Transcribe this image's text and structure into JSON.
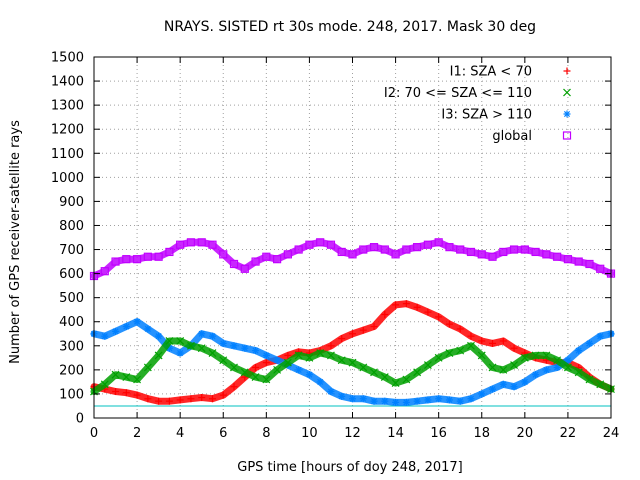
{
  "chart_data": {
    "type": "scatter",
    "title": "NRAYS. SISTED rt 30s mode. 248, 2017. Mask 30 deg",
    "xlabel": "GPS time [hours of doy 248, 2017]",
    "ylabel": "Number of GPS receiver-satellite rays",
    "xlim": [
      0,
      24
    ],
    "ylim": [
      0,
      1500
    ],
    "grid": true,
    "legend_position": "top-right",
    "x_ticks": [
      0,
      2,
      4,
      6,
      8,
      10,
      12,
      14,
      16,
      18,
      20,
      22,
      24
    ],
    "y_ticks": [
      0,
      100,
      200,
      300,
      400,
      500,
      600,
      700,
      800,
      900,
      1000,
      1100,
      1200,
      1300,
      1400,
      1500
    ],
    "threshold": {
      "value": 50,
      "color": "#00c0c0"
    },
    "series": [
      {
        "name": "I1: SZA < 70",
        "marker": "+",
        "color": "#ff0000",
        "x": [
          0,
          0.5,
          1,
          1.5,
          2,
          2.5,
          3,
          3.5,
          4,
          4.5,
          5,
          5.5,
          6,
          6.5,
          7,
          7.5,
          8,
          8.5,
          9,
          9.5,
          10,
          10.5,
          11,
          11.5,
          12,
          12.5,
          13,
          13.5,
          14,
          14.5,
          15,
          15.5,
          16,
          16.5,
          17,
          17.5,
          18,
          18.5,
          19,
          19.5,
          20,
          20.5,
          21,
          21.5,
          22,
          22.5,
          23,
          23.5,
          24
        ],
        "values": [
          130,
          120,
          110,
          105,
          95,
          80,
          70,
          70,
          75,
          80,
          85,
          80,
          95,
          130,
          170,
          210,
          230,
          240,
          260,
          275,
          270,
          280,
          300,
          330,
          350,
          365,
          380,
          430,
          470,
          475,
          460,
          440,
          420,
          390,
          370,
          340,
          320,
          310,
          320,
          290,
          270,
          250,
          240,
          230,
          230,
          210,
          170,
          140,
          120
        ]
      },
      {
        "name": "I2: 70 <= SZA <= 110",
        "marker": "x",
        "color": "#00a000",
        "x": [
          0,
          0.5,
          1,
          1.5,
          2,
          2.5,
          3,
          3.5,
          4,
          4.5,
          5,
          5.5,
          6,
          6.5,
          7,
          7.5,
          8,
          8.5,
          9,
          9.5,
          10,
          10.5,
          11,
          11.5,
          12,
          12.5,
          13,
          13.5,
          14,
          14.5,
          15,
          15.5,
          16,
          16.5,
          17,
          17.5,
          18,
          18.5,
          19,
          19.5,
          20,
          20.5,
          21,
          21.5,
          22,
          22.5,
          23,
          23.5,
          24
        ],
        "values": [
          110,
          140,
          180,
          170,
          160,
          210,
          260,
          320,
          320,
          300,
          290,
          270,
          240,
          210,
          190,
          170,
          160,
          200,
          230,
          260,
          250,
          270,
          260,
          240,
          230,
          210,
          190,
          170,
          145,
          160,
          190,
          220,
          250,
          270,
          280,
          300,
          260,
          210,
          200,
          220,
          250,
          260,
          260,
          240,
          210,
          190,
          160,
          140,
          120
        ]
      },
      {
        "name": "I3: SZA > 110",
        "marker": "*",
        "color": "#0080ff",
        "x": [
          0,
          0.5,
          1,
          1.5,
          2,
          2.5,
          3,
          3.5,
          4,
          4.5,
          5,
          5.5,
          6,
          6.5,
          7,
          7.5,
          8,
          8.5,
          9,
          9.5,
          10,
          10.5,
          11,
          11.5,
          12,
          12.5,
          13,
          13.5,
          14,
          14.5,
          15,
          15.5,
          16,
          16.5,
          17,
          17.5,
          18,
          18.5,
          19,
          19.5,
          20,
          20.5,
          21,
          21.5,
          22,
          22.5,
          23,
          23.5,
          24
        ],
        "values": [
          350,
          340,
          360,
          380,
          400,
          370,
          340,
          290,
          270,
          300,
          350,
          340,
          310,
          300,
          290,
          280,
          260,
          240,
          220,
          200,
          180,
          150,
          110,
          90,
          80,
          80,
          70,
          70,
          65,
          65,
          70,
          75,
          80,
          75,
          70,
          80,
          100,
          120,
          140,
          130,
          150,
          180,
          200,
          210,
          240,
          280,
          310,
          340,
          350
        ]
      },
      {
        "name": "global",
        "marker": "square",
        "color": "#c000ff",
        "x": [
          0,
          0.5,
          1,
          1.5,
          2,
          2.5,
          3,
          3.5,
          4,
          4.5,
          5,
          5.5,
          6,
          6.5,
          7,
          7.5,
          8,
          8.5,
          9,
          9.5,
          10,
          10.5,
          11,
          11.5,
          12,
          12.5,
          13,
          13.5,
          14,
          14.5,
          15,
          15.5,
          16,
          16.5,
          17,
          17.5,
          18,
          18.5,
          19,
          19.5,
          20,
          20.5,
          21,
          21.5,
          22,
          22.5,
          23,
          23.5,
          24
        ],
        "values": [
          590,
          610,
          650,
          660,
          660,
          670,
          670,
          690,
          720,
          730,
          730,
          720,
          680,
          640,
          620,
          650,
          670,
          660,
          680,
          700,
          720,
          730,
          720,
          690,
          680,
          700,
          710,
          700,
          680,
          700,
          710,
          720,
          730,
          710,
          700,
          690,
          680,
          670,
          690,
          700,
          700,
          690,
          680,
          670,
          660,
          650,
          640,
          620,
          600
        ]
      }
    ]
  }
}
